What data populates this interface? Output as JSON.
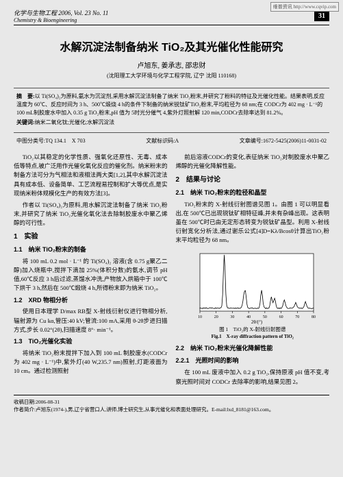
{
  "watermark": "维普资讯 http://www.cqvip.com",
  "header": {
    "journal_cn": "化学与生物工程",
    "journal_en": "Chemistry & Bioengineering",
    "issue": "2006, Vol. 23 No. 11",
    "page_num": "31"
  },
  "title": "水解沉淀法制备纳米 TiO₂及其光催化性能研究",
  "authors": "卢旭东, 姜承志, 邵忠财",
  "affiliation": "(沈阳理工大学环境与化学工程学院, 辽宁 沈阳 110168)",
  "abstract": {
    "label": "摘　要:",
    "text": "以 Ti(SO₄)₂为原料,氨水为沉淀剂,采用水解沉淀法制备了纳米 TiO₂粉末,并研究了粉料的特征及光催化性能。结果表明,反应温度为 60℃、反应时间为 3 h、500℃煅烧 4 h的条件下制备的纳米锐钛矿TiO₂粉末,平均粒径为 68 nm;在 CODCr为 402 mg · L⁻¹的 100 mL制胶废水中加入 0.35 g TiO₂粉末,pH 值为 5时光分催气 4,紫外灯照射解 120 min,CODCr去除率达到 81.2%。"
  },
  "keywords": {
    "label": "关键词:",
    "text": "纳米二氧化钛;光催化;水解沉淀法"
  },
  "classification": {
    "clc": "中图分类号:TQ 134.1　X 703",
    "doc_code": "文献标识码:A",
    "article_id": "文章编号:1672-5425(2006)11-0031-02"
  },
  "left_col": {
    "intro_p1": "TiO₂以其稳定的化学性质、强氧化还原性、无毒、成本低等特点,被广泛用作光催化氧化反应的催化剂。纳米粉末的制备方法可分为气相法和液相法两大类[1,2],其中水解沉淀法具有成本低、设备简单、工艺流程易控制和扩大等优点,是实现纳米粉体规模化生产的有效方法[3]。",
    "intro_p2": "作者以 Ti(SO₄)₂为原料,用水解沉淀法制备了纳米 TiO₂粉末,并研究了纳米 TiO₂光催化氧化法去除制胶废水中聚乙烯醇的可行性。",
    "h1": "1　实验",
    "h11": "1.1　纳米 TiO₂粉末的制备",
    "p11": "将 100 mL 0.2 mol · L⁻¹ 的 Ti(SO₄)₂ 溶液(含 0.75 g聚乙二醇)加入烧瓶中,搅拌下滴加 25%(体积分数)的氨水,调节 pH 值,60℃反应 3 h后过滤,蒸馏水冲洗,产物放入烘箱中于 100℃下烘干 3 h,然后在 500℃煅烧 4 h,所得粉末即为纳米 TiO₂。",
    "h12": "1.2　XRD 物相分析",
    "p12": "使用日本理学 D/max RB型 X-射线衍射仪进行物相分析,辐射源为 Cu kα,管压:40 kV;管流:100 mA,采用 θ-2θ步进扫描方式,步长 0.02°(2θ),扫描速度 8°· min⁻¹。",
    "h13": "1.3　TiO₂光催化实验",
    "p13": "将纳米 TiO₂粉末搅拌下加入到 100 mL 制胶废水(CODCr 为 402 mg · L⁻¹)中,紫外灯(40 W,235.7 nm)照射,灯距液面为 10 cm。通过检测照射"
  },
  "right_col": {
    "cont_p": "前后溶液CODCr的变化,表征纳米 TiO₂对制胶废水中聚乙烯醇的光催化降解性能。",
    "h2": "2　结果与讨论",
    "h21": "2.1　纳米 TiO₂粉末的粒径和晶型",
    "p21": "TiO₂粉末的 X-射线衍射图谱见图 1。由图 1 可以明显看出,在 500℃已出现锐钛矿相特征峰,并未有杂峰出现。这表明虽在 500℃时已由无定形态转变为锐钛矿晶型。利用 X-射线衍射宽化分析法,通过谢乐公式[4]D=Kλ/Bcosθ计算出TiO₂粉末平均粒径为 68 nm。",
    "fig": {
      "caption_cn": "图 1　TiO₂的 X-射线衍射图谱",
      "caption_en": "Fig.1　X-ray diffraction pattern of TiO₂",
      "x_axis": {
        "label": "2θ/(°)",
        "ticks": [
          "10",
          "20",
          "30",
          "40",
          "50",
          "60",
          "70",
          "80"
        ]
      },
      "peaks": [
        {
          "x": 25,
          "h": 65
        },
        {
          "x": 37,
          "h": 12
        },
        {
          "x": 38,
          "h": 18
        },
        {
          "x": 48,
          "h": 22
        },
        {
          "x": 54,
          "h": 14
        },
        {
          "x": 56,
          "h": 12
        },
        {
          "x": 62,
          "h": 10
        },
        {
          "x": 69,
          "h": 7
        },
        {
          "x": 75,
          "h": 8
        }
      ],
      "bg": "#ffffff",
      "stroke": "#000000"
    },
    "h22": "2.2　纳米 TiO₂粉末光催化降解性能",
    "h221": "2.2.1　光照时间的影响",
    "p221": "在 100 mL 废液中加入 0.2 g TiO₂,保持原液 pH 值不变,考察光照时间对 CODCr 去除率的影响,结果见图 2。"
  },
  "footer": {
    "received": "收稿日期:2006-08-31",
    "author_info": "作者简介:卢旭东(1974-),男,辽宁省营口人,讲师,博士研究生,从事光催化和表面处理研究。E-mail:lxd_8181@163.com。"
  }
}
